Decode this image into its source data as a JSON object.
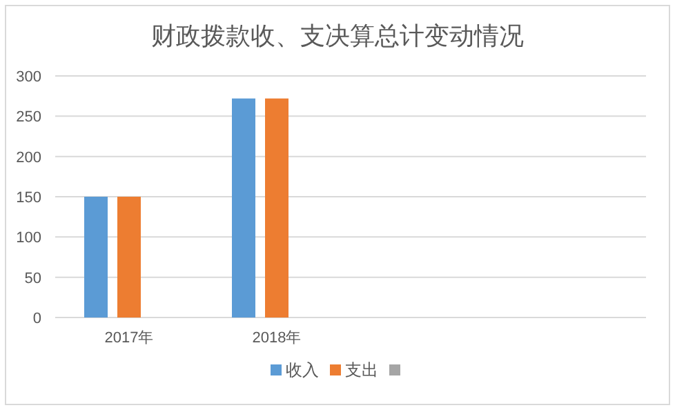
{
  "chart_data": {
    "type": "bar",
    "title": "财政拨款收、支决算总计变动情况",
    "categories": [
      "2017年",
      "2018年",
      null,
      null
    ],
    "series": [
      {
        "name": "收入",
        "color": "#5b9bd5",
        "values": [
          150,
          272,
          null,
          null
        ]
      },
      {
        "name": "支出",
        "color": "#ed7d31",
        "values": [
          150,
          272,
          null,
          null
        ]
      },
      {
        "color": "#a5a5a5",
        "values": [
          null,
          null,
          null,
          null
        ]
      }
    ],
    "ylim": [
      0,
      300
    ],
    "yticks": [
      0,
      50,
      100,
      150,
      200,
      250,
      300
    ],
    "grid": "y",
    "legend": "bottom"
  }
}
